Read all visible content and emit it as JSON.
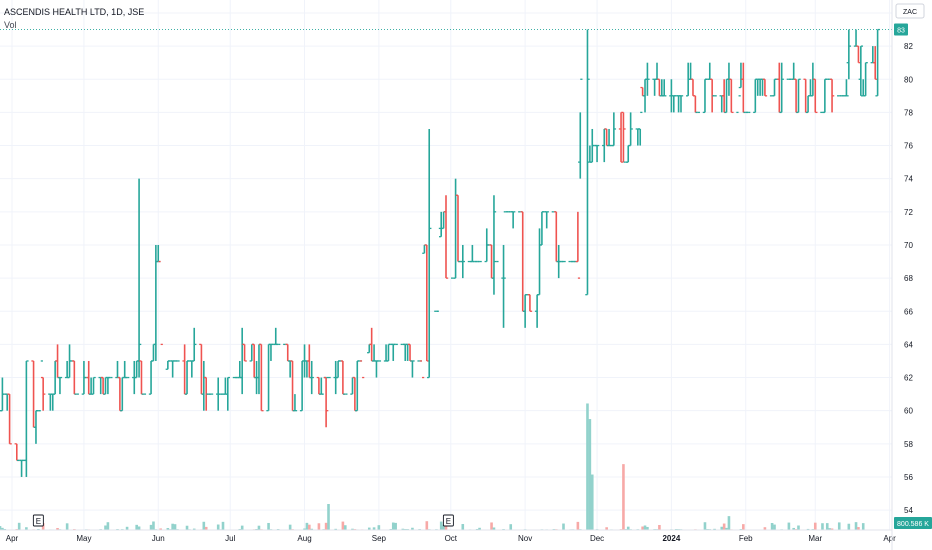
{
  "legend": {
    "symbol_line": "ASCENDIS HEALTH LTD, 1D, JSE",
    "volume_label": "Vol"
  },
  "currency": "ZAC",
  "last_price_tag": "83",
  "volume_tag": "800.586 K",
  "event_markers": [
    "E",
    "E"
  ],
  "colors": {
    "up": "#26a69a",
    "down": "#ef5350",
    "up_volume": "#92d2cc",
    "down_volume": "#f7a9a7",
    "grid": "#f0f3fa",
    "axis_text": "#131722",
    "price_line": "#26a69a"
  },
  "chart_data": {
    "type": "ohlc",
    "title": "ASCENDIS HEALTH LTD, 1D, JSE",
    "x_ticks": [
      "Apr",
      "May",
      "Jun",
      "Jul",
      "Aug",
      "Sep",
      "Oct",
      "Nov",
      "Dec",
      "2024",
      "Feb",
      "Mar",
      "Apr"
    ],
    "y_ticks": [
      54,
      56,
      58,
      60,
      62,
      64,
      66,
      68,
      70,
      72,
      74,
      76,
      78,
      80,
      82,
      84
    ],
    "ylim": [
      52.8,
      84.3
    ],
    "grid": true,
    "price_segments": [
      {
        "from": "Mar 27 2023",
        "to": "Apr 14 2023",
        "low": 56,
        "high": 64,
        "close": 63
      },
      {
        "from": "Apr 14 2023",
        "to": "May 24 2023",
        "low": 60,
        "high": 64,
        "close": 63
      },
      {
        "from": "May 24 2023",
        "to": "Jun 5 2023",
        "low": 60,
        "high": 74,
        "close": 64
      },
      {
        "from": "Jun 5 2023",
        "to": "Aug 10 2023",
        "low": 60,
        "high": 65,
        "close": 62
      },
      {
        "from": "Aug 10 2023",
        "to": "Aug 28 2023",
        "low": 59,
        "high": 64,
        "close": 62
      },
      {
        "from": "Aug 28 2023",
        "to": "Sep 20 2023",
        "low": 62,
        "high": 65,
        "close": 62
      },
      {
        "from": "Sep 20 2023",
        "to": "Sep 27 2023",
        "low": 62,
        "high": 77,
        "close": 71
      },
      {
        "from": "Sep 27 2023",
        "to": "Oct 20 2023",
        "low": 67,
        "high": 74,
        "close": 72
      },
      {
        "from": "Oct 20 2023",
        "to": "Nov 24 2023",
        "low": 65,
        "high": 73,
        "close": 68
      },
      {
        "from": "Nov 24 2023",
        "to": "Nov 27 2023",
        "low": 67,
        "high": 83,
        "close": 80
      },
      {
        "from": "Nov 27 2023",
        "to": "Dec 20 2023",
        "low": 75,
        "high": 80,
        "close": 78
      },
      {
        "from": "Dec 20 2023",
        "to": "Jan 30 2024",
        "low": 78,
        "high": 81,
        "close": 79
      },
      {
        "from": "Jan 30 2024",
        "to": "Mar 15 2024",
        "low": 78,
        "high": 81,
        "close": 79
      },
      {
        "from": "Mar 15 2024",
        "to": "Mar 28 2024",
        "low": 79,
        "high": 83,
        "close": 83
      }
    ],
    "volume_spikes_k": [
      {
        "date": "Nov 27 2023",
        "value": 7300
      },
      {
        "date": "Nov 28 2023",
        "value": 6400
      },
      {
        "date": "Nov 29 2023",
        "value": 3200
      },
      {
        "date": "Dec 12 2023",
        "value": 3800
      },
      {
        "date": "Aug 11 2023",
        "value": 1500
      },
      {
        "date": "Jan 25 2024",
        "value": 800
      }
    ],
    "last_volume_k": 800.586
  }
}
